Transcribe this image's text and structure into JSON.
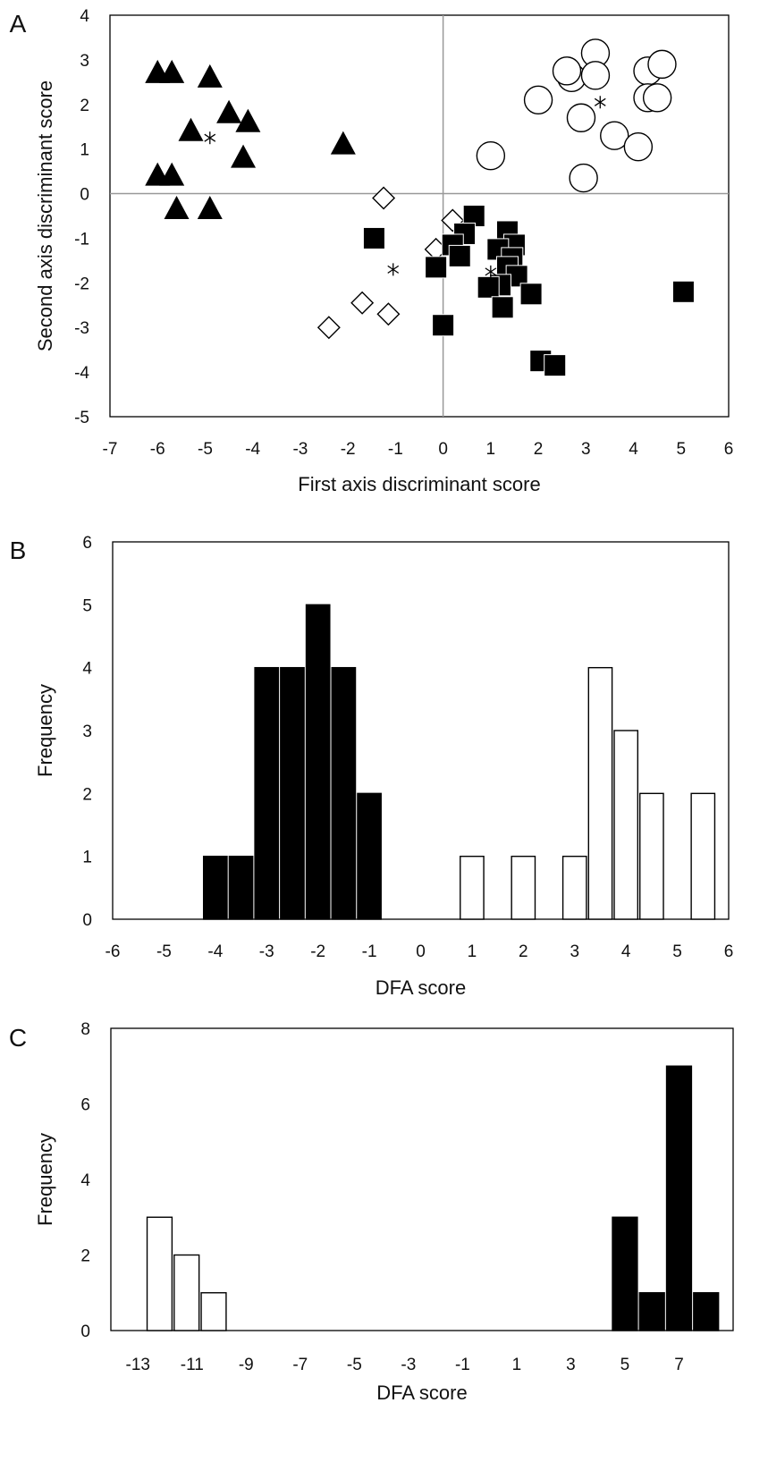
{
  "chart_data": [
    {
      "type": "scatter",
      "panel_label": "A",
      "xlabel": "First axis discriminant score",
      "ylabel": "Second axis discriminant score",
      "xlim": [
        -7,
        6
      ],
      "ylim": [
        -5,
        4
      ],
      "xticks": [
        "-7",
        "-6",
        "-5",
        "-4",
        "-3",
        "-2",
        "-1",
        "0",
        "1",
        "2",
        "3",
        "4",
        "5",
        "6"
      ],
      "yticks": [
        "-5",
        "-4",
        "-3",
        "-2",
        "-1",
        "0",
        "1",
        "2",
        "3",
        "4"
      ],
      "reference_lines": [
        {
          "axis": "x",
          "value": 0
        },
        {
          "axis": "y",
          "value": 0
        }
      ],
      "series": [
        {
          "marker": "filled-triangle",
          "points": [
            [
              -6,
              2.7
            ],
            [
              -5.7,
              2.7
            ],
            [
              -4.9,
              2.6
            ],
            [
              -4.5,
              1.8
            ],
            [
              -4.1,
              1.6
            ],
            [
              -5.3,
              1.4
            ],
            [
              -4.2,
              0.8
            ],
            [
              -2.1,
              1.1
            ],
            [
              -6,
              0.4
            ],
            [
              -5.7,
              0.4
            ],
            [
              -5.6,
              -0.35
            ],
            [
              -4.9,
              -0.35
            ]
          ]
        },
        {
          "marker": "open-circle",
          "points": [
            [
              2.7,
              2.6
            ],
            [
              2.6,
              2.75
            ],
            [
              3.2,
              3.15
            ],
            [
              3.2,
              2.65
            ],
            [
              4.3,
              2.75
            ],
            [
              4.6,
              2.9
            ],
            [
              4.3,
              2.15
            ],
            [
              4.5,
              2.15
            ],
            [
              2,
              2.1
            ],
            [
              2.9,
              1.7
            ],
            [
              3.6,
              1.3
            ],
            [
              4.1,
              1.05
            ],
            [
              1,
              0.85
            ],
            [
              2.95,
              0.35
            ]
          ]
        },
        {
          "marker": "open-diamond",
          "points": [
            [
              -1.25,
              -0.1
            ],
            [
              0.2,
              -0.6
            ],
            [
              -0.15,
              -1.25
            ],
            [
              -1.7,
              -2.45
            ],
            [
              -1.15,
              -2.7
            ],
            [
              -2.4,
              -3
            ]
          ]
        },
        {
          "marker": "filled-square",
          "points": [
            [
              -1.45,
              -1
            ],
            [
              0.65,
              -0.5
            ],
            [
              0.45,
              -0.9
            ],
            [
              0.2,
              -1.15
            ],
            [
              0.35,
              -1.4
            ],
            [
              1.35,
              -0.85
            ],
            [
              1.5,
              -1.15
            ],
            [
              1.15,
              -1.25
            ],
            [
              1.45,
              -1.45
            ],
            [
              1.35,
              -1.65
            ],
            [
              1.55,
              -1.85
            ],
            [
              -0.15,
              -1.65
            ],
            [
              1.2,
              -2.05
            ],
            [
              0.95,
              -2.1
            ],
            [
              1.85,
              -2.25
            ],
            [
              1.25,
              -2.55
            ],
            [
              0,
              -2.95
            ],
            [
              5.05,
              -2.2
            ],
            [
              2.05,
              -3.75
            ],
            [
              2.35,
              -3.85
            ]
          ]
        },
        {
          "marker": "asterisk",
          "points": [
            [
              -4.9,
              1.25
            ],
            [
              3.3,
              2.05
            ],
            [
              -1.05,
              -1.7
            ],
            [
              1,
              -1.75
            ]
          ]
        }
      ]
    },
    {
      "type": "bar",
      "panel_label": "B",
      "xlabel": "DFA score",
      "ylabel": "Frequency",
      "xlim": [
        -6,
        6
      ],
      "ylim": [
        0,
        6
      ],
      "xticks": [
        "-6",
        "-5",
        "-4",
        "-3",
        "-2",
        "-1",
        "0",
        "1",
        "2",
        "3",
        "4",
        "5",
        "6"
      ],
      "yticks": [
        "0",
        "1",
        "2",
        "3",
        "4",
        "5",
        "6"
      ],
      "series": [
        {
          "fill": "black",
          "bins": [
            {
              "x": -4,
              "value": 1
            },
            {
              "x": -3.5,
              "value": 1
            },
            {
              "x": -3,
              "value": 4
            },
            {
              "x": -2.5,
              "value": 4
            },
            {
              "x": -2,
              "value": 5
            },
            {
              "x": -1.5,
              "value": 4
            },
            {
              "x": -1,
              "value": 2
            }
          ]
        },
        {
          "fill": "white",
          "bins": [
            {
              "x": 1,
              "value": 1
            },
            {
              "x": 2,
              "value": 1
            },
            {
              "x": 3,
              "value": 1
            },
            {
              "x": 3.5,
              "value": 4
            },
            {
              "x": 4,
              "value": 3
            },
            {
              "x": 4.5,
              "value": 2
            },
            {
              "x": 5.5,
              "value": 2
            }
          ]
        }
      ]
    },
    {
      "type": "bar",
      "panel_label": "C",
      "xlabel": "DFA score",
      "ylabel": "Frequency",
      "xlim": [
        -14,
        9
      ],
      "ylim": [
        0,
        8
      ],
      "xticks": [
        "-13",
        "-11",
        "-9",
        "-7",
        "-5",
        "-3",
        "-1",
        "1",
        "3",
        "5",
        "7"
      ],
      "yticks": [
        "0",
        "2",
        "4",
        "6",
        "8"
      ],
      "series": [
        {
          "fill": "white",
          "bins": [
            {
              "x": -12.2,
              "value": 3
            },
            {
              "x": -11.2,
              "value": 2
            },
            {
              "x": -10.2,
              "value": 1
            }
          ]
        },
        {
          "fill": "black",
          "bins": [
            {
              "x": 5,
              "value": 3
            },
            {
              "x": 6,
              "value": 1
            },
            {
              "x": 7,
              "value": 7
            },
            {
              "x": 8,
              "value": 1
            }
          ]
        }
      ]
    }
  ]
}
